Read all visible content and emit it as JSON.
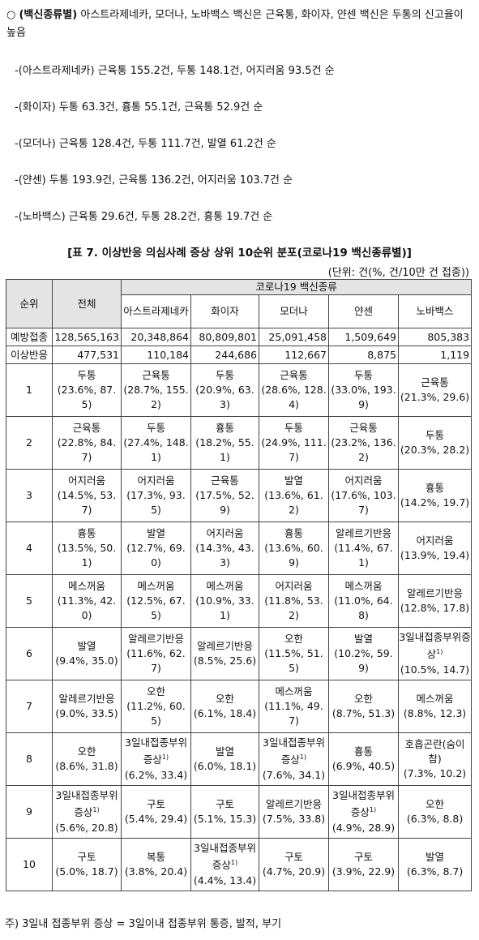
{
  "intro": {
    "marker": "○",
    "label": "(백신종류별)",
    "text": "아스트라제네카, 모더나, 노바백스 백신은 근육통, 화이자, 얀센 백신은 두통의 신고율이 높음"
  },
  "items": [
    "-(아스트라제네카) 근육통 155.2건, 두통 148.1건, 어지러움 93.5건 순",
    "-(화이자) 두통 63.3건, 흉통 55.1건, 근육통 52.9건 순",
    "-(모더나) 근육통 128.4건, 두통 111.7건, 발열 61.2건 순",
    "-(얀센) 두통 193.9건, 근육통 136.2건, 어지러움 103.7건 순",
    "-(노바백스) 근육통 29.6건, 두통 28.2건, 흉통 19.7건 순"
  ],
  "table": {
    "title": "[표 7. 이상반응 의심사례 증상 상위 10순위 분포(코로나19 백신종류별)]",
    "unit": "(단위: 건(%, 건/10만 건 접종))",
    "header": {
      "rank": "순위",
      "total": "전체",
      "group": "코로나19 백신종류",
      "vaccines": [
        "아스트라제네카",
        "화이자",
        "모더나",
        "얀센",
        "노바백스"
      ]
    },
    "summary_rows": [
      [
        "예방접종",
        "128,565,163",
        "20,348,864",
        "80,809,801",
        "25,091,458",
        "1,509,649",
        "805,383"
      ],
      [
        "이상반응",
        "477,531",
        "110,184",
        "244,686",
        "112,667",
        "8,875",
        "1,119"
      ]
    ],
    "rows": [
      {
        "rank": "1",
        "cells": [
          {
            "s": "두통",
            "v": "(23.6%, 87.5)"
          },
          {
            "s": "근육통",
            "v": "(28.7%, 155.2)"
          },
          {
            "s": "두통",
            "v": "(20.9%, 63.3)"
          },
          {
            "s": "근육통",
            "v": "(28.6%, 128.4)"
          },
          {
            "s": "두통",
            "v": "(33.0%, 193.9)"
          },
          {
            "s": "근육통",
            "v": "(21.3%, 29.6)"
          }
        ]
      },
      {
        "rank": "2",
        "cells": [
          {
            "s": "근육통",
            "v": "(22.8%, 84.7)"
          },
          {
            "s": "두통",
            "v": "(27.4%, 148.1)"
          },
          {
            "s": "흉통",
            "v": "(18.2%, 55.1)"
          },
          {
            "s": "두통",
            "v": "(24.9%, 111.7)"
          },
          {
            "s": "근육통",
            "v": "(23.2%, 136.2)"
          },
          {
            "s": "두통",
            "v": "(20.3%, 28.2)"
          }
        ]
      },
      {
        "rank": "3",
        "cells": [
          {
            "s": "어지러움",
            "v": "(14.5%, 53.7)"
          },
          {
            "s": "어지러움",
            "v": "(17.3%, 93.5)"
          },
          {
            "s": "근육통",
            "v": "(17.5%, 52.9)"
          },
          {
            "s": "발열",
            "v": "(13.6%, 61.2)"
          },
          {
            "s": "어지러움",
            "v": "(17.6%, 103.7)"
          },
          {
            "s": "흉통",
            "v": "(14.2%, 19.7)"
          }
        ]
      },
      {
        "rank": "4",
        "cells": [
          {
            "s": "흉통",
            "v": "(13.5%, 50.1)"
          },
          {
            "s": "발열",
            "v": "(12.7%, 69.0)"
          },
          {
            "s": "어지러움",
            "v": "(14.3%, 43.3)"
          },
          {
            "s": "흉통",
            "v": "(13.6%, 60.9)"
          },
          {
            "s": "알레르기반응",
            "v": "(11.4%, 67.1)"
          },
          {
            "s": "어지러움",
            "v": "(13.9%, 19.4)"
          }
        ]
      },
      {
        "rank": "5",
        "cells": [
          {
            "s": "메스꺼움",
            "v": "(11.3%, 42.0)"
          },
          {
            "s": "메스꺼움",
            "v": "(12.5%, 67.5)"
          },
          {
            "s": "메스꺼움",
            "v": "(10.9%, 33.1)"
          },
          {
            "s": "어지러움",
            "v": "(11.8%, 53.2)"
          },
          {
            "s": "메스꺼움",
            "v": "(11.0%, 64.8)"
          },
          {
            "s": "알레르기반응",
            "v": "(12.8%, 17.8)"
          }
        ]
      },
      {
        "rank": "6",
        "cells": [
          {
            "s": "발열",
            "v": "(9.4%, 35.0)"
          },
          {
            "s": "알레르기반응",
            "v": "(11.6%, 62.7)"
          },
          {
            "s": "알레르기반응",
            "v": "(8.5%, 25.6)"
          },
          {
            "s": "오한",
            "v": "(11.5%, 51.5)"
          },
          {
            "s": "발열",
            "v": "(10.2%, 59.9)"
          },
          {
            "s": "3일내접종부위증상",
            "n": "1)",
            "v": "(10.5%, 14.7)"
          }
        ]
      },
      {
        "rank": "7",
        "cells": [
          {
            "s": "알레르기반응",
            "v": "(9.0%, 33.5)"
          },
          {
            "s": "오한",
            "v": "(11.2%, 60.5)"
          },
          {
            "s": "오한",
            "v": "(6.1%, 18.4)"
          },
          {
            "s": "메스꺼움",
            "v": "(11.1%, 49.7)"
          },
          {
            "s": "오한",
            "v": "(8.7%, 51.3)"
          },
          {
            "s": "메스꺼움",
            "v": "(8.8%, 12.3)"
          }
        ]
      },
      {
        "rank": "8",
        "cells": [
          {
            "s": "오한",
            "v": "(8.6%, 31.8)"
          },
          {
            "s": "3일내접종부위증상",
            "n": "1)",
            "v": "(6.2%, 33.4)"
          },
          {
            "s": "발열",
            "v": "(6.0%, 18.1)"
          },
          {
            "s": "3일내접종부위증상",
            "n": "1)",
            "v": "(7.6%, 34.1)"
          },
          {
            "s": "흉통",
            "v": "(6.9%, 40.5)"
          },
          {
            "s": "호흡곤란(숨이참)",
            "v": "(7.3%, 10.2)"
          }
        ]
      },
      {
        "rank": "9",
        "cells": [
          {
            "s": "3일내접종부위증상",
            "n": "1)",
            "v": "(5.6%, 20.8)"
          },
          {
            "s": "구토",
            "v": "(5.4%, 29.4)"
          },
          {
            "s": "구토",
            "v": "(5.1%, 15.3)"
          },
          {
            "s": "알레르기반응",
            "v": "(7.5%, 33.8)"
          },
          {
            "s": "3일내접종부위증상",
            "n": "1)",
            "v": "(4.9%, 28.9)"
          },
          {
            "s": "오한",
            "v": "(6.3%, 8.8)"
          }
        ]
      },
      {
        "rank": "10",
        "cells": [
          {
            "s": "구토",
            "v": "(5.0%, 18.7)"
          },
          {
            "s": "복통",
            "v": "(3.8%, 20.4)"
          },
          {
            "s": "3일내접종부위증상",
            "n": "1)",
            "v": "(4.4%, 13.4)"
          },
          {
            "s": "구토",
            "v": "(4.7%, 20.9)"
          },
          {
            "s": "구토",
            "v": "(3.9%, 22.9)"
          },
          {
            "s": "발열",
            "v": "(6.3%, 8.7)"
          }
        ]
      }
    ]
  },
  "footnote": "주) 3일내 접종부위 증상 = 3일이내 접종부위 통증, 발적, 부기"
}
